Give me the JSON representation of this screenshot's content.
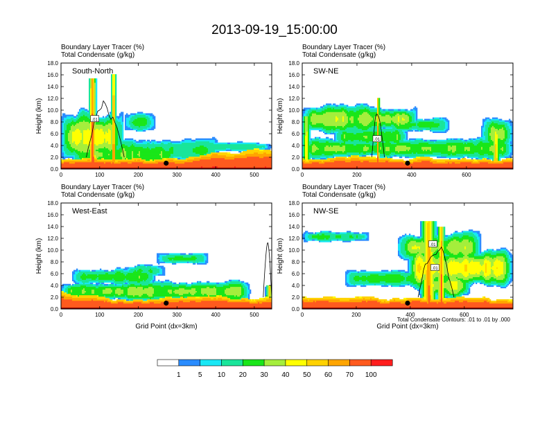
{
  "figure_title": "2013-09-19_15:00:00",
  "legend_colors": [
    "#ffffff",
    "#2a8cff",
    "#19e8f5",
    "#19e59a",
    "#19e619",
    "#a5ee3c",
    "#ffff00",
    "#ffd200",
    "#ffa500",
    "#ff5a1e",
    "#ff1e1e"
  ],
  "colorbar_labels": [
    "1",
    "5",
    "10",
    "20",
    "30",
    "40",
    "50",
    "60",
    "70",
    "100"
  ],
  "contour_note": "Total Condensate Contours: .01 to .01 by .000",
  "chart_data": [
    {
      "type": "heatmap",
      "panel_label": "South-North",
      "subtitle_lines": [
        "Boundary Layer Tracer   (%)",
        "Total Condensate   (g/kg)"
      ],
      "ylabel": "Height (km)",
      "xlabel": "",
      "xlim": [
        0,
        545
      ],
      "ylim": [
        0,
        18
      ],
      "xticks": [
        "0",
        "100",
        "200",
        "300",
        "400",
        "500"
      ],
      "yticks": [
        "0.0",
        "2.0",
        "4.0",
        "6.0",
        "8.0",
        "10.0",
        "12.0",
        "14.0",
        "16.0",
        "18.0"
      ],
      "contour_labels": [
        ".01"
      ],
      "marker_x": 272,
      "marker_y": 1.0
    },
    {
      "type": "heatmap",
      "panel_label": "SW-NE",
      "subtitle_lines": [
        "Boundary Layer Tracer   (%)",
        "Total Condensate   (g/kg)"
      ],
      "ylabel": "Height (km)",
      "xlabel": "",
      "xlim": [
        0,
        770
      ],
      "ylim": [
        0,
        18
      ],
      "xticks": [
        "0",
        "200",
        "400",
        "600"
      ],
      "yticks": [
        "0.0",
        "2.0",
        "4.0",
        "6.0",
        "8.0",
        "10.0",
        "12.0",
        "14.0",
        "16.0",
        "18.0"
      ],
      "contour_labels": [
        ".01"
      ],
      "marker_x": 385,
      "marker_y": 1.0
    },
    {
      "type": "heatmap",
      "panel_label": "West-East",
      "subtitle_lines": [
        "Boundary Layer Tracer   (%)",
        "Total Condensate   (g/kg)"
      ],
      "ylabel": "Height (km)",
      "xlabel": "Grid Point (dx=3km)",
      "xlim": [
        0,
        545
      ],
      "ylim": [
        0,
        18
      ],
      "xticks": [
        "0",
        "100",
        "200",
        "300",
        "400",
        "500"
      ],
      "yticks": [
        "0.0",
        "2.0",
        "4.0",
        "6.0",
        "8.0",
        "10.0",
        "12.0",
        "14.0",
        "16.0",
        "18.0"
      ],
      "contour_labels": [],
      "marker_x": 272,
      "marker_y": 1.0
    },
    {
      "type": "heatmap",
      "panel_label": "NW-SE",
      "subtitle_lines": [
        "Boundary Layer Tracer   (%)",
        "Total Condensate   (g/kg)"
      ],
      "ylabel": "Height (km)",
      "xlabel": "Grid Point (dx=3km)",
      "xlim": [
        0,
        780
      ],
      "ylim": [
        0,
        18
      ],
      "xticks": [
        "0",
        "200",
        "400",
        "600"
      ],
      "yticks": [
        "0.0",
        "2.0",
        "4.0",
        "6.0",
        "8.0",
        "10.0",
        "12.0",
        "14.0",
        "16.0",
        "18.0"
      ],
      "contour_labels": [
        ".01",
        ".01"
      ],
      "marker_x": 390,
      "marker_y": 1.0
    }
  ]
}
